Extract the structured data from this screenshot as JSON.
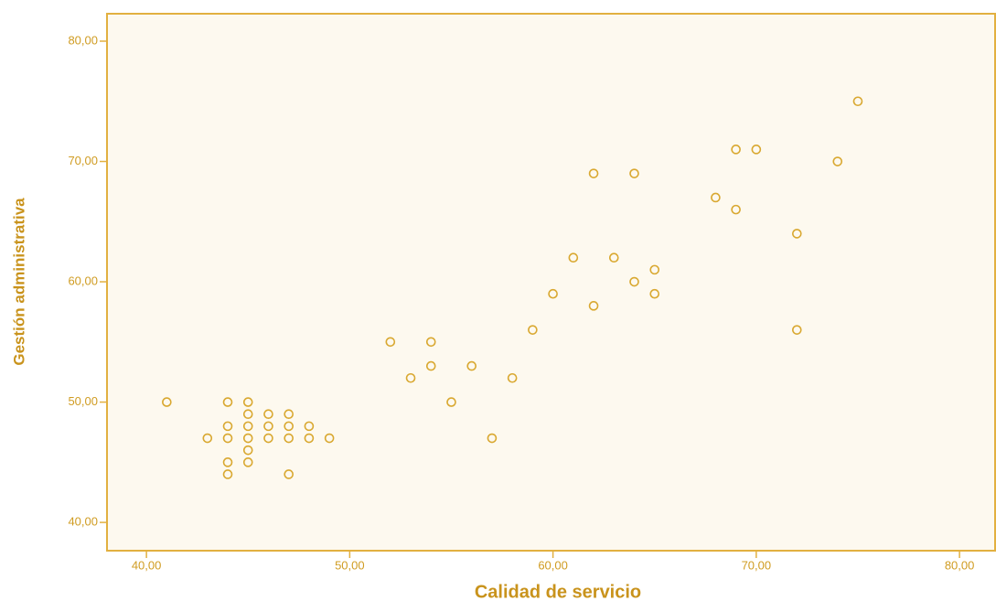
{
  "chart_data": {
    "type": "scatter",
    "x_label": "Calidad de servicio",
    "y_label": "Gestión administrativa",
    "x": [
      41,
      43,
      44,
      44,
      44,
      44,
      44,
      45,
      45,
      45,
      45,
      45,
      45,
      46,
      46,
      46,
      47,
      47,
      47,
      47,
      48,
      48,
      49,
      52,
      53,
      54,
      54,
      55,
      56,
      57,
      58,
      59,
      60,
      61,
      62,
      62,
      63,
      64,
      64,
      65,
      65,
      68,
      69,
      69,
      70,
      72,
      72,
      74,
      75
    ],
    "values": [
      50,
      47,
      50,
      48,
      47,
      45,
      44,
      50,
      49,
      48,
      47,
      46,
      45,
      49,
      48,
      47,
      49,
      48,
      47,
      44,
      48,
      47,
      47,
      55,
      52,
      55,
      53,
      50,
      53,
      47,
      52,
      56,
      59,
      62,
      69,
      58,
      62,
      69,
      60,
      61,
      59,
      67,
      71,
      66,
      71,
      64,
      56,
      70,
      75
    ],
    "color": "#d9a830",
    "xlim": [
      38.06,
      81.75
    ],
    "ylim": [
      37.65,
      82.28
    ],
    "xticks": [
      {
        "value": 40,
        "label": "40,00"
      },
      {
        "value": 50,
        "label": "50,00"
      },
      {
        "value": 60,
        "label": "60,00"
      },
      {
        "value": 70,
        "label": "70,00"
      },
      {
        "value": 80,
        "label": "80,00"
      }
    ],
    "yticks": [
      {
        "value": 40,
        "label": "40,00"
      },
      {
        "value": 50,
        "label": "50,00"
      },
      {
        "value": 60,
        "label": "60,00"
      },
      {
        "value": 70,
        "label": "70,00"
      },
      {
        "value": 80,
        "label": "80,00"
      }
    ]
  }
}
